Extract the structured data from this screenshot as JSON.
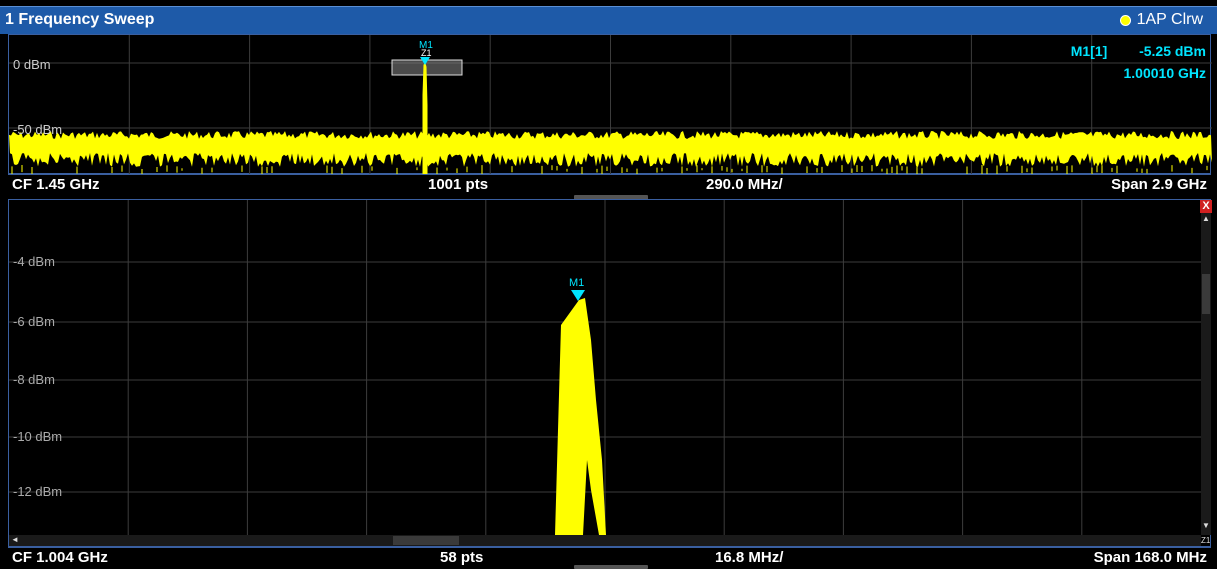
{
  "window": {
    "title": "1 Frequency Sweep",
    "trace_label": "1AP Clrw",
    "trace_color": "#ffff00"
  },
  "top_pane": {
    "y_labels": [
      "0 dBm",
      "-50 dBm"
    ],
    "marker_label": "M1",
    "zoom_marker_label": "Z1",
    "marker_readout": {
      "name": "M1[1]",
      "level": "-5.25 dBm",
      "frequency": "1.00010 GHz"
    },
    "footer": {
      "center_freq": "CF 1.45 GHz",
      "points": "1001 pts",
      "div": "290.0 MHz/",
      "span": "Span 2.9 GHz"
    }
  },
  "bottom_pane": {
    "y_labels": [
      "-4 dBm",
      "-6 dBm",
      "-8 dBm",
      "-10 dBm",
      "-12 dBm"
    ],
    "marker_label": "M1",
    "close_label": "X",
    "zoom_label": "Z1",
    "footer": {
      "center_freq": "CF 1.004 GHz",
      "points": "58 pts",
      "div": "16.8 MHz/",
      "span": "Span 168.0 MHz"
    }
  },
  "colors": {
    "trace": "#ffff00",
    "marker": "#00e5ff",
    "grid": "#3c3c3c",
    "title_bar": "#1e5aa8"
  }
}
